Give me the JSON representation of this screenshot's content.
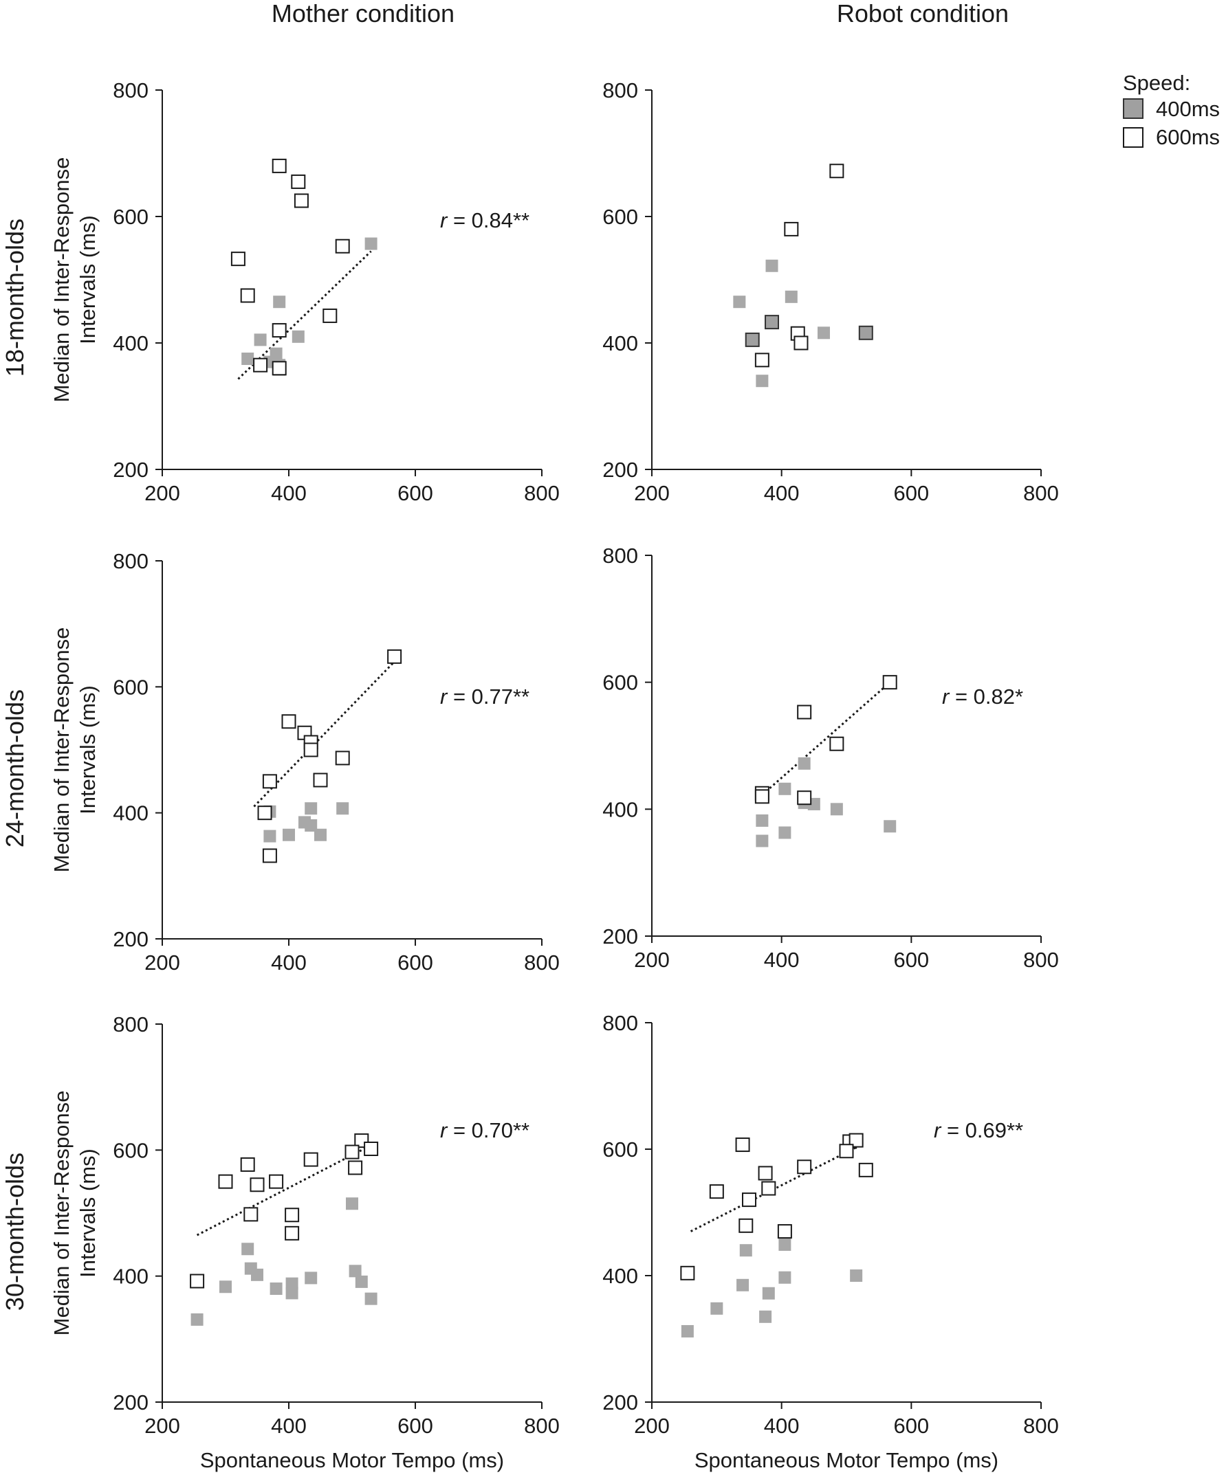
{
  "column_titles": [
    "Mother condition",
    "Robot condition"
  ],
  "row_titles": [
    "18-month-olds",
    "24-month-olds",
    "30-month-olds"
  ],
  "ylabel_line1": "Median of Inter-Response",
  "ylabel_line2": "Intervals (ms)",
  "xlabel": "Spontaneous Motor Tempo (ms)",
  "legend": {
    "title": "Speed:",
    "items": [
      {
        "label": "400ms",
        "style": "filled",
        "color": "#a0a0a0"
      },
      {
        "label": "600ms",
        "style": "open",
        "color": "#ffffff"
      }
    ]
  },
  "chart_data": [
    {
      "type": "scatter",
      "condition": "Mother condition",
      "age": "18-month-olds",
      "xlim": [
        200,
        800
      ],
      "ylim": [
        200,
        800
      ],
      "xticks": [
        "200",
        "400",
        "600",
        "800"
      ],
      "yticks": [
        "200",
        "400",
        "600",
        "800"
      ],
      "annotation_r": "r",
      "annotation_value": " = 0.84**",
      "trendline": {
        "x": [
          320,
          530
        ],
        "y": [
          343,
          545
        ]
      },
      "series": [
        {
          "name": "400ms",
          "style": "filled",
          "points": [
            [
              355,
              405
            ],
            [
              335,
              375
            ],
            [
              370,
              370
            ],
            [
              380,
              383
            ],
            [
              385,
              365
            ],
            [
              385,
              358
            ],
            [
              385,
              465
            ],
            [
              415,
              410
            ],
            [
              530,
              557
            ]
          ]
        },
        {
          "name": "600ms",
          "style": "open",
          "points": [
            [
              385,
              680
            ],
            [
              415,
              655
            ],
            [
              420,
              625
            ],
            [
              320,
              533
            ],
            [
              485,
              553
            ],
            [
              335,
              475
            ],
            [
              385,
              420
            ],
            [
              465,
              443
            ],
            [
              355,
              365
            ],
            [
              385,
              360
            ]
          ]
        }
      ]
    },
    {
      "type": "scatter",
      "condition": "Robot condition",
      "age": "18-month-olds",
      "xlim": [
        200,
        800
      ],
      "ylim": [
        200,
        800
      ],
      "xticks": [
        "200",
        "400",
        "600",
        "800"
      ],
      "yticks": [
        "200",
        "400",
        "600",
        "800"
      ],
      "annotation_r": "",
      "annotation_value": "",
      "trendline": null,
      "series": [
        {
          "name": "400ms",
          "style": "filled",
          "points": [
            [
              385,
              522
            ],
            [
              335,
              465
            ],
            [
              415,
              473
            ],
            [
              465,
              416
            ],
            [
              370,
              340
            ]
          ]
        },
        {
          "name": "400ms",
          "style": "filled-outlined",
          "points": [
            [
              355,
              405
            ],
            [
              385,
              433
            ],
            [
              530,
              416
            ]
          ]
        },
        {
          "name": "600ms",
          "style": "open",
          "points": [
            [
              485,
              672
            ],
            [
              415,
              580
            ],
            [
              425,
              415
            ],
            [
              430,
              400
            ],
            [
              370,
              373
            ]
          ]
        }
      ]
    },
    {
      "type": "scatter",
      "condition": "Mother condition",
      "age": "24-month-olds",
      "xlim": [
        200,
        800
      ],
      "ylim": [
        200,
        800
      ],
      "xticks": [
        "200",
        "400",
        "600",
        "800"
      ],
      "yticks": [
        "200",
        "400",
        "600",
        "800"
      ],
      "annotation_r": "r",
      "annotation_value": " = 0.77**",
      "trendline": {
        "x": [
          345,
          565
        ],
        "y": [
          410,
          638
        ]
      },
      "series": [
        {
          "name": "400ms",
          "style": "filled",
          "points": [
            [
              370,
              402
            ],
            [
              370,
              363
            ],
            [
              400,
              365
            ],
            [
              425,
              385
            ],
            [
              435,
              407
            ],
            [
              435,
              380
            ],
            [
              450,
              365
            ],
            [
              485,
              407
            ]
          ]
        },
        {
          "name": "600ms",
          "style": "open",
          "points": [
            [
              567,
              648
            ],
            [
              400,
              545
            ],
            [
              425,
              527
            ],
            [
              435,
              512
            ],
            [
              435,
              500
            ],
            [
              485,
              487
            ],
            [
              450,
              452
            ],
            [
              370,
              450
            ],
            [
              362,
              400
            ],
            [
              370,
              332
            ]
          ]
        }
      ]
    },
    {
      "type": "scatter",
      "condition": "Robot condition",
      "age": "24-month-olds",
      "xlim": [
        200,
        800
      ],
      "ylim": [
        200,
        800
      ],
      "xticks": [
        "200",
        "400",
        "600",
        "800"
      ],
      "yticks": [
        "200",
        "400",
        "600",
        "800"
      ],
      "annotation_r": "r",
      "annotation_value": " = 0.82*",
      "trendline": {
        "x": [
          365,
          565
        ],
        "y": [
          418,
          598
        ]
      },
      "series": [
        {
          "name": "400ms",
          "style": "filled",
          "points": [
            [
              435,
              472
            ],
            [
              405,
              432
            ],
            [
              435,
              410
            ],
            [
              450,
              408
            ],
            [
              485,
              400
            ],
            [
              405,
              363
            ],
            [
              370,
              382
            ],
            [
              370,
              350
            ],
            [
              567,
              373
            ]
          ]
        },
        {
          "name": "600ms",
          "style": "open",
          "points": [
            [
              567,
              600
            ],
            [
              435,
              553
            ],
            [
              485,
              503
            ],
            [
              370,
              425
            ],
            [
              370,
              420
            ],
            [
              435,
              418
            ]
          ]
        }
      ]
    },
    {
      "type": "scatter",
      "condition": "Mother condition",
      "age": "30-month-olds",
      "xlim": [
        200,
        800
      ],
      "ylim": [
        200,
        800
      ],
      "xticks": [
        "200",
        "400",
        "600",
        "800"
      ],
      "yticks": [
        "200",
        "400",
        "600",
        "800"
      ],
      "annotation_r": "r",
      "annotation_value": " = 0.70**",
      "trendline": {
        "x": [
          255,
          525
        ],
        "y": [
          465,
          605
        ]
      },
      "series": [
        {
          "name": "400ms",
          "style": "filled",
          "points": [
            [
              500,
              515
            ],
            [
              335,
              443
            ],
            [
              340,
              412
            ],
            [
              350,
              402
            ],
            [
              300,
              383
            ],
            [
              380,
              380
            ],
            [
              405,
              388
            ],
            [
              405,
              373
            ],
            [
              435,
              397
            ],
            [
              505,
              408
            ],
            [
              515,
              391
            ],
            [
              530,
              364
            ],
            [
              255,
              331
            ]
          ]
        },
        {
          "name": "600ms",
          "style": "open",
          "points": [
            [
              515,
              615
            ],
            [
              500,
              597
            ],
            [
              530,
              602
            ],
            [
              505,
              572
            ],
            [
              435,
              585
            ],
            [
              335,
              577
            ],
            [
              300,
              550
            ],
            [
              350,
              545
            ],
            [
              380,
              550
            ],
            [
              340,
              498
            ],
            [
              405,
              497
            ],
            [
              405,
              468
            ],
            [
              255,
              392
            ]
          ]
        }
      ]
    },
    {
      "type": "scatter",
      "condition": "Robot condition",
      "age": "30-month-olds",
      "xlim": [
        200,
        800
      ],
      "ylim": [
        200,
        800
      ],
      "xticks": [
        "200",
        "400",
        "600",
        "800"
      ],
      "yticks": [
        "200",
        "400",
        "600",
        "800"
      ],
      "annotation_r": "r",
      "annotation_value": " = 0.69**",
      "trendline": {
        "x": [
          260,
          525
        ],
        "y": [
          470,
          608
        ]
      },
      "series": [
        {
          "name": "400ms",
          "style": "filled",
          "points": [
            [
              405,
              449
            ],
            [
              345,
              440
            ],
            [
              405,
              397
            ],
            [
              340,
              385
            ],
            [
              380,
              372
            ],
            [
              375,
              335
            ],
            [
              300,
              348
            ],
            [
              255,
              312
            ],
            [
              515,
              400
            ]
          ]
        },
        {
          "name": "600ms",
          "style": "open",
          "points": [
            [
              340,
              607
            ],
            [
              505,
              612
            ],
            [
              515,
              614
            ],
            [
              500,
              597
            ],
            [
              530,
              567
            ],
            [
              435,
              572
            ],
            [
              375,
              562
            ],
            [
              300,
              533
            ],
            [
              350,
              520
            ],
            [
              380,
              538
            ],
            [
              345,
              479
            ],
            [
              405,
              470
            ],
            [
              255,
              404
            ]
          ]
        }
      ]
    }
  ]
}
